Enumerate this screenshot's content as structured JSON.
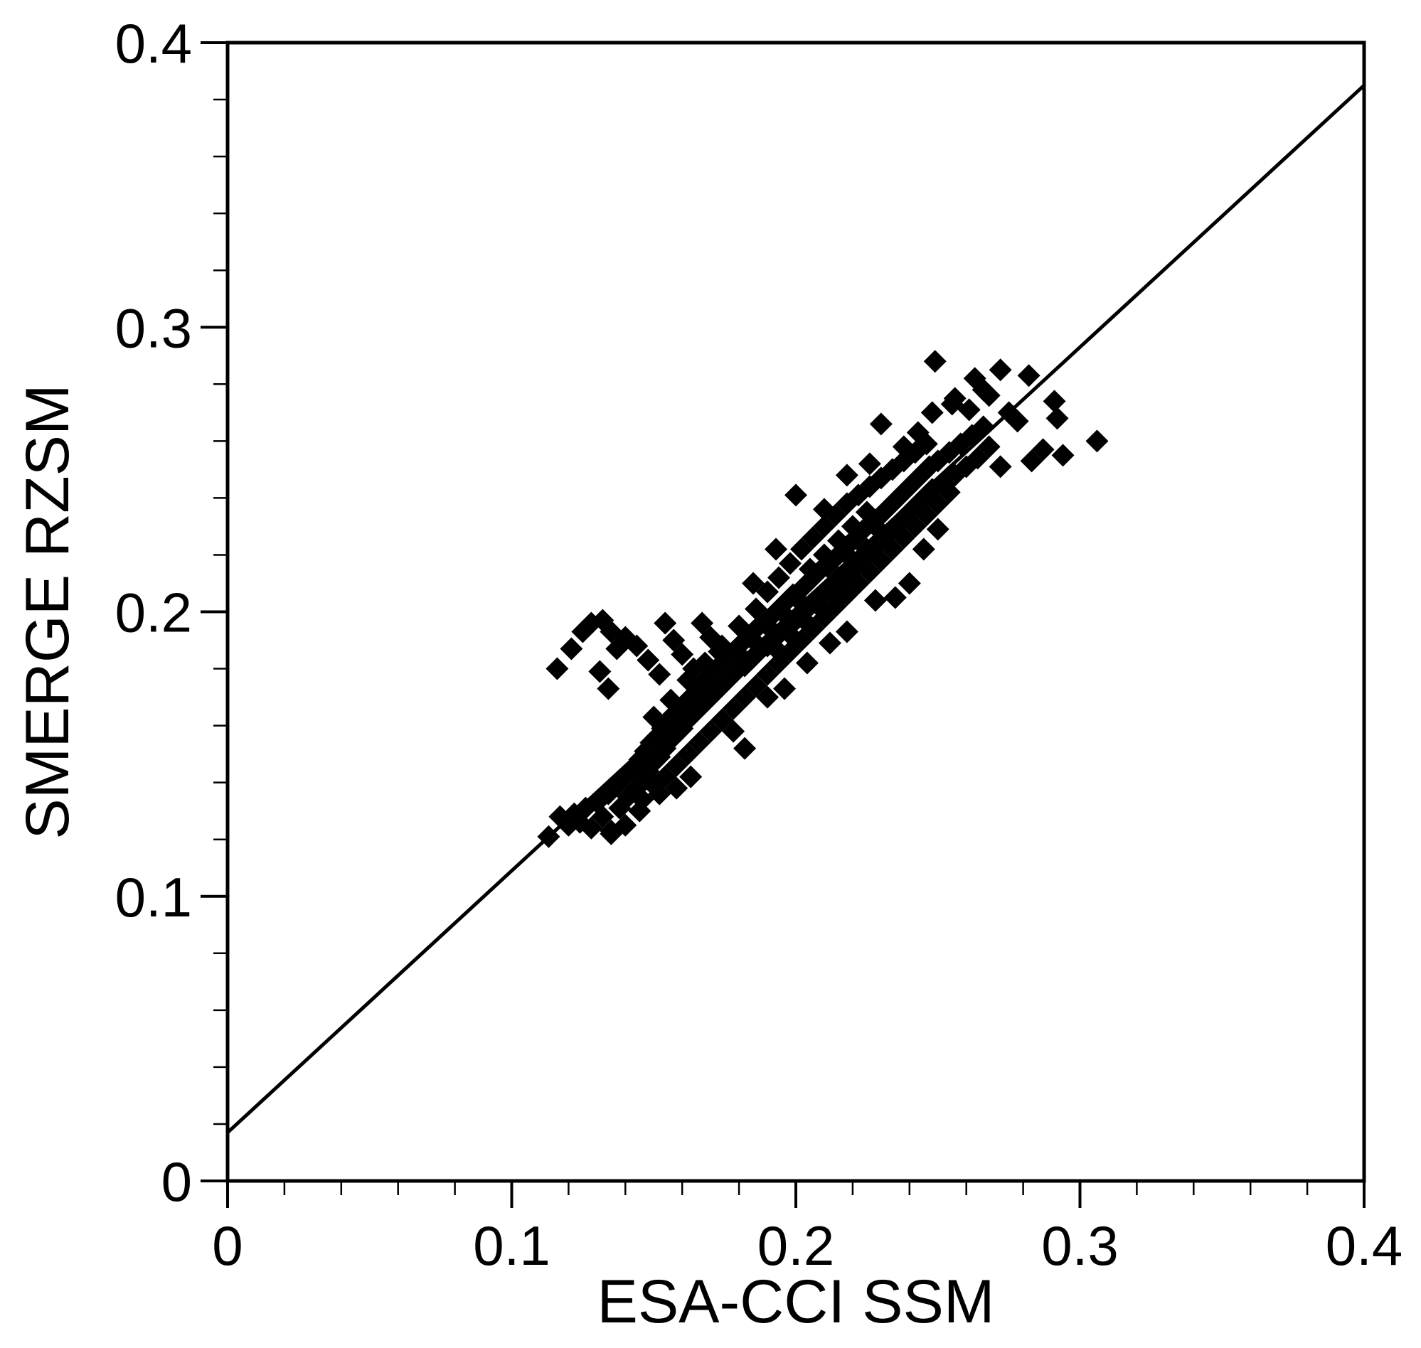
{
  "chart_data": {
    "type": "scatter",
    "title": "",
    "xlabel": "ESA-CCI SSM",
    "ylabel": "SMERGE RZSM",
    "xlim": [
      0,
      0.4
    ],
    "ylim": [
      0,
      0.4
    ],
    "x_ticks": [
      "0",
      "0.1",
      "0.2",
      "0.3",
      "0.4"
    ],
    "y_ticks": [
      "0",
      "0.1",
      "0.2",
      "0.3",
      "0.4"
    ],
    "x_minor_step": 0.02,
    "y_minor_step": 0.02,
    "grid": false,
    "marker": "diamond",
    "marker_color": "#000000",
    "line_color": "#000000",
    "fit_line": {
      "x": [
        0,
        0.4
      ],
      "y": [
        0.017,
        0.385
      ]
    },
    "points": [
      [
        0.113,
        0.121
      ],
      [
        0.117,
        0.128
      ],
      [
        0.12,
        0.125
      ],
      [
        0.122,
        0.129
      ],
      [
        0.124,
        0.126
      ],
      [
        0.126,
        0.131
      ],
      [
        0.128,
        0.124
      ],
      [
        0.13,
        0.133
      ],
      [
        0.132,
        0.128
      ],
      [
        0.134,
        0.136
      ],
      [
        0.135,
        0.123
      ],
      [
        0.137,
        0.139
      ],
      [
        0.138,
        0.131
      ],
      [
        0.14,
        0.142
      ],
      [
        0.141,
        0.135
      ],
      [
        0.143,
        0.145
      ],
      [
        0.144,
        0.138
      ],
      [
        0.145,
        0.148
      ],
      [
        0.146,
        0.141
      ],
      [
        0.147,
        0.151
      ],
      [
        0.148,
        0.144
      ],
      [
        0.149,
        0.154
      ],
      [
        0.15,
        0.147
      ],
      [
        0.151,
        0.156
      ],
      [
        0.152,
        0.149
      ],
      [
        0.153,
        0.159
      ],
      [
        0.154,
        0.152
      ],
      [
        0.155,
        0.161
      ],
      [
        0.156,
        0.155
      ],
      [
        0.157,
        0.164
      ],
      [
        0.158,
        0.157
      ],
      [
        0.159,
        0.166
      ],
      [
        0.16,
        0.159
      ],
      [
        0.161,
        0.168
      ],
      [
        0.162,
        0.162
      ],
      [
        0.163,
        0.17
      ],
      [
        0.164,
        0.164
      ],
      [
        0.165,
        0.172
      ],
      [
        0.166,
        0.166
      ],
      [
        0.167,
        0.175
      ],
      [
        0.168,
        0.168
      ],
      [
        0.169,
        0.177
      ],
      [
        0.17,
        0.17
      ],
      [
        0.171,
        0.179
      ],
      [
        0.172,
        0.172
      ],
      [
        0.173,
        0.181
      ],
      [
        0.174,
        0.174
      ],
      [
        0.175,
        0.183
      ],
      [
        0.176,
        0.176
      ],
      [
        0.177,
        0.185
      ],
      [
        0.178,
        0.178
      ],
      [
        0.179,
        0.187
      ],
      [
        0.18,
        0.18
      ],
      [
        0.181,
        0.189
      ],
      [
        0.182,
        0.181
      ],
      [
        0.183,
        0.191
      ],
      [
        0.184,
        0.183
      ],
      [
        0.185,
        0.193
      ],
      [
        0.186,
        0.185
      ],
      [
        0.187,
        0.195
      ],
      [
        0.188,
        0.187
      ],
      [
        0.189,
        0.196
      ],
      [
        0.19,
        0.188
      ],
      [
        0.191,
        0.198
      ],
      [
        0.192,
        0.19
      ],
      [
        0.193,
        0.2
      ],
      [
        0.194,
        0.192
      ],
      [
        0.195,
        0.202
      ],
      [
        0.196,
        0.194
      ],
      [
        0.197,
        0.204
      ],
      [
        0.198,
        0.195
      ],
      [
        0.199,
        0.206
      ],
      [
        0.2,
        0.197
      ],
      [
        0.201,
        0.207
      ],
      [
        0.202,
        0.199
      ],
      [
        0.203,
        0.209
      ],
      [
        0.204,
        0.201
      ],
      [
        0.205,
        0.211
      ],
      [
        0.206,
        0.203
      ],
      [
        0.207,
        0.213
      ],
      [
        0.208,
        0.204
      ],
      [
        0.209,
        0.215
      ],
      [
        0.21,
        0.206
      ],
      [
        0.211,
        0.216
      ],
      [
        0.212,
        0.208
      ],
      [
        0.213,
        0.218
      ],
      [
        0.214,
        0.21
      ],
      [
        0.215,
        0.22
      ],
      [
        0.216,
        0.211
      ],
      [
        0.217,
        0.222
      ],
      [
        0.218,
        0.213
      ],
      [
        0.219,
        0.224
      ],
      [
        0.22,
        0.215
      ],
      [
        0.221,
        0.226
      ],
      [
        0.222,
        0.217
      ],
      [
        0.223,
        0.228
      ],
      [
        0.224,
        0.219
      ],
      [
        0.225,
        0.23
      ],
      [
        0.226,
        0.221
      ],
      [
        0.227,
        0.231
      ],
      [
        0.228,
        0.223
      ],
      [
        0.229,
        0.233
      ],
      [
        0.23,
        0.225
      ],
      [
        0.231,
        0.235
      ],
      [
        0.232,
        0.227
      ],
      [
        0.233,
        0.237
      ],
      [
        0.234,
        0.229
      ],
      [
        0.235,
        0.239
      ],
      [
        0.236,
        0.231
      ],
      [
        0.237,
        0.241
      ],
      [
        0.238,
        0.233
      ],
      [
        0.239,
        0.243
      ],
      [
        0.24,
        0.235
      ],
      [
        0.241,
        0.245
      ],
      [
        0.242,
        0.237
      ],
      [
        0.243,
        0.247
      ],
      [
        0.244,
        0.239
      ],
      [
        0.245,
        0.249
      ],
      [
        0.246,
        0.241
      ],
      [
        0.247,
        0.251
      ],
      [
        0.248,
        0.243
      ],
      [
        0.25,
        0.253
      ],
      [
        0.252,
        0.245
      ],
      [
        0.254,
        0.256
      ],
      [
        0.256,
        0.248
      ],
      [
        0.258,
        0.259
      ],
      [
        0.26,
        0.251
      ],
      [
        0.262,
        0.262
      ],
      [
        0.264,
        0.254
      ],
      [
        0.266,
        0.265
      ],
      [
        0.268,
        0.258
      ],
      [
        0.146,
        0.134
      ],
      [
        0.15,
        0.139
      ],
      [
        0.154,
        0.142
      ],
      [
        0.158,
        0.146
      ],
      [
        0.162,
        0.15
      ],
      [
        0.166,
        0.154
      ],
      [
        0.17,
        0.158
      ],
      [
        0.174,
        0.162
      ],
      [
        0.178,
        0.166
      ],
      [
        0.182,
        0.17
      ],
      [
        0.186,
        0.174
      ],
      [
        0.19,
        0.178
      ],
      [
        0.194,
        0.182
      ],
      [
        0.198,
        0.186
      ],
      [
        0.202,
        0.19
      ],
      [
        0.206,
        0.194
      ],
      [
        0.21,
        0.198
      ],
      [
        0.214,
        0.202
      ],
      [
        0.218,
        0.206
      ],
      [
        0.222,
        0.21
      ],
      [
        0.226,
        0.214
      ],
      [
        0.23,
        0.218
      ],
      [
        0.234,
        0.222
      ],
      [
        0.238,
        0.226
      ],
      [
        0.242,
        0.23
      ],
      [
        0.246,
        0.234
      ],
      [
        0.25,
        0.238
      ],
      [
        0.254,
        0.242
      ],
      [
        0.15,
        0.163
      ],
      [
        0.156,
        0.169
      ],
      [
        0.162,
        0.176
      ],
      [
        0.168,
        0.182
      ],
      [
        0.174,
        0.188
      ],
      [
        0.18,
        0.195
      ],
      [
        0.186,
        0.201
      ],
      [
        0.19,
        0.207
      ],
      [
        0.194,
        0.212
      ],
      [
        0.198,
        0.217
      ],
      [
        0.202,
        0.222
      ],
      [
        0.206,
        0.226
      ],
      [
        0.21,
        0.23
      ],
      [
        0.214,
        0.234
      ],
      [
        0.218,
        0.238
      ],
      [
        0.222,
        0.241
      ],
      [
        0.226,
        0.244
      ],
      [
        0.23,
        0.247
      ],
      [
        0.234,
        0.25
      ],
      [
        0.238,
        0.253
      ],
      [
        0.242,
        0.256
      ],
      [
        0.246,
        0.259
      ],
      [
        0.195,
        0.185
      ],
      [
        0.2,
        0.19
      ],
      [
        0.205,
        0.195
      ],
      [
        0.21,
        0.2
      ],
      [
        0.215,
        0.205
      ],
      [
        0.22,
        0.21
      ],
      [
        0.205,
        0.215
      ],
      [
        0.21,
        0.22
      ],
      [
        0.215,
        0.225
      ],
      [
        0.22,
        0.23
      ],
      [
        0.225,
        0.235
      ],
      [
        0.215,
        0.212
      ],
      [
        0.22,
        0.218
      ],
      [
        0.225,
        0.222
      ],
      [
        0.23,
        0.228
      ],
      [
        0.2,
        0.205
      ],
      [
        0.195,
        0.2
      ],
      [
        0.19,
        0.195
      ],
      [
        0.185,
        0.19
      ],
      [
        0.18,
        0.185
      ],
      [
        0.116,
        0.18
      ],
      [
        0.121,
        0.187
      ],
      [
        0.125,
        0.193
      ],
      [
        0.128,
        0.196
      ],
      [
        0.132,
        0.197
      ],
      [
        0.135,
        0.193
      ],
      [
        0.137,
        0.187
      ],
      [
        0.131,
        0.179
      ],
      [
        0.134,
        0.173
      ],
      [
        0.14,
        0.191
      ],
      [
        0.144,
        0.188
      ],
      [
        0.148,
        0.183
      ],
      [
        0.152,
        0.178
      ],
      [
        0.154,
        0.196
      ],
      [
        0.157,
        0.19
      ],
      [
        0.16,
        0.185
      ],
      [
        0.164,
        0.18
      ],
      [
        0.167,
        0.196
      ],
      [
        0.17,
        0.191
      ],
      [
        0.173,
        0.186
      ],
      [
        0.163,
        0.142
      ],
      [
        0.158,
        0.138
      ],
      [
        0.152,
        0.136
      ],
      [
        0.145,
        0.13
      ],
      [
        0.14,
        0.125
      ],
      [
        0.135,
        0.122
      ],
      [
        0.178,
        0.158
      ],
      [
        0.182,
        0.152
      ],
      [
        0.19,
        0.17
      ],
      [
        0.196,
        0.173
      ],
      [
        0.204,
        0.182
      ],
      [
        0.212,
        0.189
      ],
      [
        0.218,
        0.193
      ],
      [
        0.228,
        0.204
      ],
      [
        0.235,
        0.205
      ],
      [
        0.24,
        0.21
      ],
      [
        0.245,
        0.222
      ],
      [
        0.25,
        0.229
      ],
      [
        0.185,
        0.21
      ],
      [
        0.193,
        0.222
      ],
      [
        0.2,
        0.241
      ],
      [
        0.21,
        0.236
      ],
      [
        0.218,
        0.248
      ],
      [
        0.226,
        0.252
      ],
      [
        0.23,
        0.266
      ],
      [
        0.238,
        0.258
      ],
      [
        0.243,
        0.263
      ],
      [
        0.248,
        0.27
      ],
      [
        0.255,
        0.273
      ],
      [
        0.249,
        0.288
      ],
      [
        0.256,
        0.275
      ],
      [
        0.261,
        0.271
      ],
      [
        0.263,
        0.282
      ],
      [
        0.266,
        0.278
      ],
      [
        0.268,
        0.276
      ],
      [
        0.272,
        0.285
      ],
      [
        0.275,
        0.27
      ],
      [
        0.278,
        0.267
      ],
      [
        0.272,
        0.251
      ],
      [
        0.282,
        0.283
      ],
      [
        0.283,
        0.253
      ],
      [
        0.287,
        0.257
      ],
      [
        0.291,
        0.274
      ],
      [
        0.292,
        0.268
      ],
      [
        0.294,
        0.255
      ],
      [
        0.306,
        0.26
      ]
    ]
  }
}
